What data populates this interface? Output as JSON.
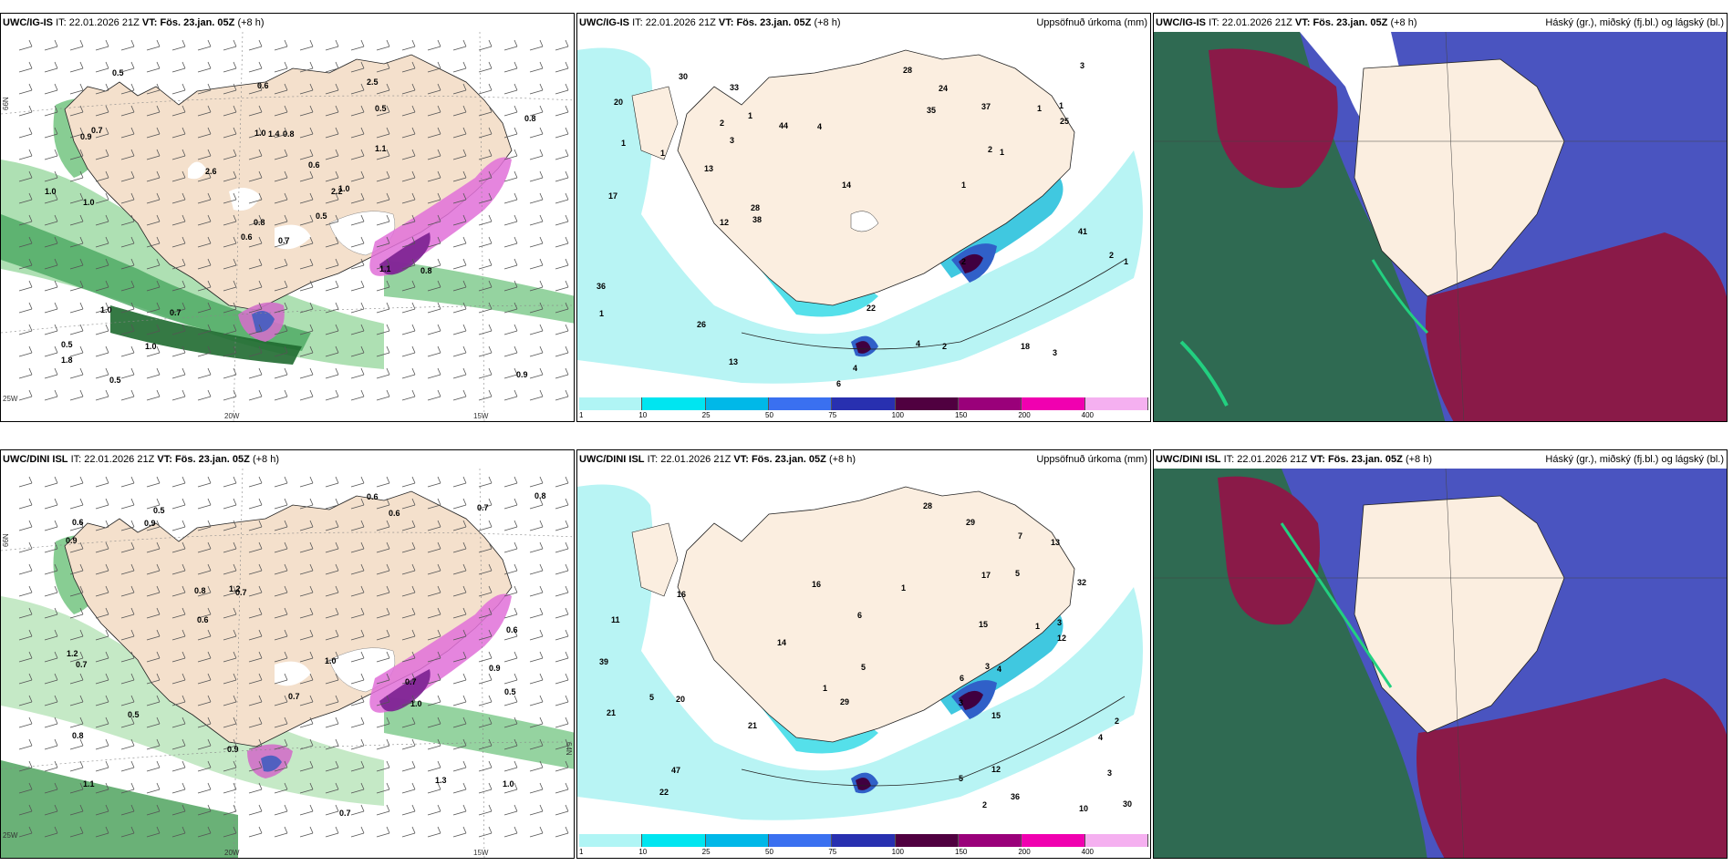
{
  "panels": [
    {
      "model": "UWC/IG-IS",
      "it_label": "IT:",
      "it_value": "22.01.2026 21Z",
      "vt_label": "VT:",
      "vt_value": "Fös. 23.jan. 05Z",
      "lead": "(+8 h)",
      "right_title": ""
    },
    {
      "model": "UWC/IG-IS",
      "it_label": "IT:",
      "it_value": "22.01.2026 21Z",
      "vt_label": "VT:",
      "vt_value": "Fös. 23.jan. 05Z",
      "lead": "(+8 h)",
      "right_title": "Uppsöfnuð úrkoma (mm)"
    },
    {
      "model": "UWC/IG-IS",
      "it_label": "IT:",
      "it_value": "22.01.2026 21Z",
      "vt_label": "VT:",
      "vt_value": "Fös. 23.jan. 05Z",
      "lead": "(+8 h)",
      "right_title": "Háský (gr.), miðský (fj.bl.) og lágský (bl.)"
    },
    {
      "model": "UWC/DINI ISL",
      "it_label": "IT:",
      "it_value": "22.01.2026 21Z",
      "vt_label": "VT:",
      "vt_value": "Fös. 23.jan. 05Z",
      "lead": "(+8 h)",
      "right_title": ""
    },
    {
      "model": "UWC/DINI ISL",
      "it_label": "IT:",
      "it_value": "22.01.2026 21Z",
      "vt_label": "VT:",
      "vt_value": "Fös. 23.jan. 05Z",
      "lead": "(+8 h)",
      "right_title": "Uppsöfnuð úrkoma (mm)"
    },
    {
      "model": "UWC/DINI ISL",
      "it_label": "IT:",
      "it_value": "22.01.2026 21Z",
      "vt_label": "VT:",
      "vt_value": "Fös. 23.jan. 05Z",
      "lead": "(+8 h)",
      "right_title": "Háský (gr.), miðský (fj.bl.) og lágský (bl.)"
    }
  ],
  "grid_labels": {
    "lat66": "66N",
    "lat64": "64N",
    "lon20": "20W",
    "lon15": "15W",
    "lon25": "25W"
  },
  "wind_values_top": [
    "0.7",
    "0.9",
    "0.8",
    "0.5",
    "2.2",
    "0.7",
    "2.5",
    "0.8",
    "0.5",
    "0.5",
    "0.5",
    "0.9",
    "1.0",
    "0.8",
    "0.6",
    "1.1",
    "0.5",
    "1.0",
    "0.6",
    "1.0",
    "2.6",
    "1.8",
    "1.0",
    "1.4",
    "1.0",
    "0.8",
    "0.7",
    "0.6",
    "1.0",
    "1.1"
  ],
  "wind_values_bottom": [
    "0.7",
    "0.9",
    "1.1",
    "0.5",
    "0.7",
    "1.3",
    "0.8",
    "0.6",
    "0.8",
    "0.7",
    "0.9",
    "1.2",
    "0.6",
    "1.0",
    "0.9",
    "0.6",
    "0.7",
    "1.0",
    "1.2",
    "0.5",
    "0.8",
    "0.7",
    "0.6",
    "0.5",
    "0.6",
    "0.9",
    "1.0",
    "0.7"
  ],
  "precip_values_top": [
    "1",
    "3",
    "1",
    "4",
    "1",
    "6",
    "2",
    "38",
    "1",
    "1",
    "2",
    "1",
    "2",
    "26",
    "17",
    "13",
    "28",
    "4",
    "3",
    "4",
    "18",
    "41",
    "14",
    "22",
    "37",
    "13",
    "25",
    "24",
    "30",
    "12",
    "36",
    "2",
    "3",
    "1",
    "20",
    "33",
    "44",
    "35",
    "28",
    "1",
    "1",
    "2"
  ],
  "precip_values_bottom": [
    "3",
    "2",
    "1",
    "4",
    "5",
    "5",
    "3",
    "6",
    "3",
    "36",
    "3",
    "6",
    "21",
    "15",
    "21",
    "10",
    "13",
    "5",
    "7",
    "16",
    "29",
    "39",
    "15",
    "29",
    "12",
    "47",
    "16",
    "17",
    "30",
    "20",
    "32",
    "28",
    "11",
    "12",
    "14",
    "22",
    "1",
    "5",
    "4",
    "2",
    "1"
  ],
  "colorbar": {
    "ticks": [
      "1",
      "10",
      "25",
      "50",
      "75",
      "100",
      "150",
      "200",
      "400"
    ],
    "colors": [
      "#b0f5f5",
      "#00e5f0",
      "#00b8e8",
      "#3a70f0",
      "#2830b0",
      "#500040",
      "#9a007a",
      "#f000b0",
      "#f5b0f0"
    ]
  },
  "colors": {
    "land": "#fbeee0",
    "sea": "#ffffff",
    "wind_green": "#2a8a3a",
    "pink": "#d030c0",
    "cloud_high": "#8a1848",
    "cloud_mid": "#4a5ac8",
    "cloud_low": "#2a5a48"
  }
}
